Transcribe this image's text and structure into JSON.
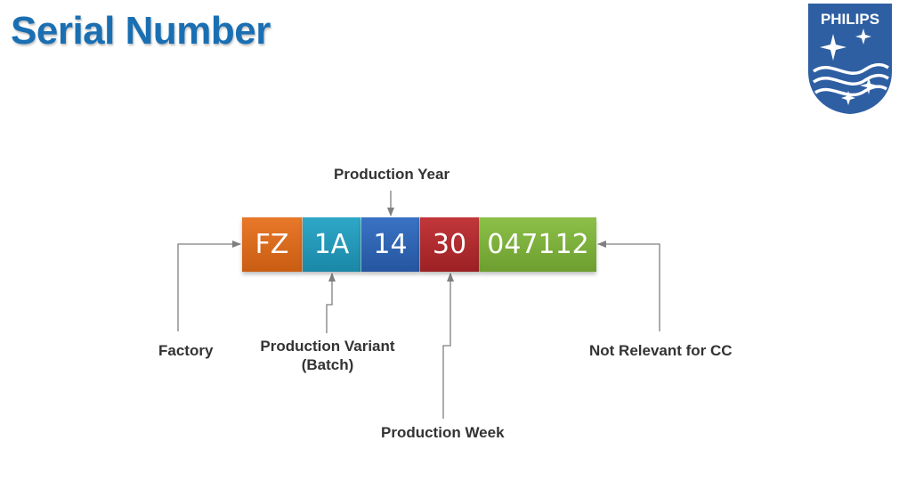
{
  "title": "Serial Number",
  "logo": {
    "text": "PHILIPS",
    "color": "#2e5fa3"
  },
  "segments": [
    {
      "code": "FZ",
      "color": "#e8782a",
      "color_dark": "#c95d12"
    },
    {
      "code": "1A",
      "color": "#2ea8c8",
      "color_dark": "#1b87a7"
    },
    {
      "code": "14",
      "color": "#3a73c4",
      "color_dark": "#2556a0"
    },
    {
      "code": "30",
      "color": "#c2373a",
      "color_dark": "#9c2124"
    },
    {
      "code": "047112",
      "color": "#8cc049",
      "color_dark": "#6d9e2f"
    }
  ],
  "labels": {
    "production_year": "Production Year",
    "factory": "Factory",
    "production_variant_line1": "Production Variant",
    "production_variant_line2": "(Batch)",
    "production_week": "Production Week",
    "not_relevant": "Not Relevant for CC"
  }
}
